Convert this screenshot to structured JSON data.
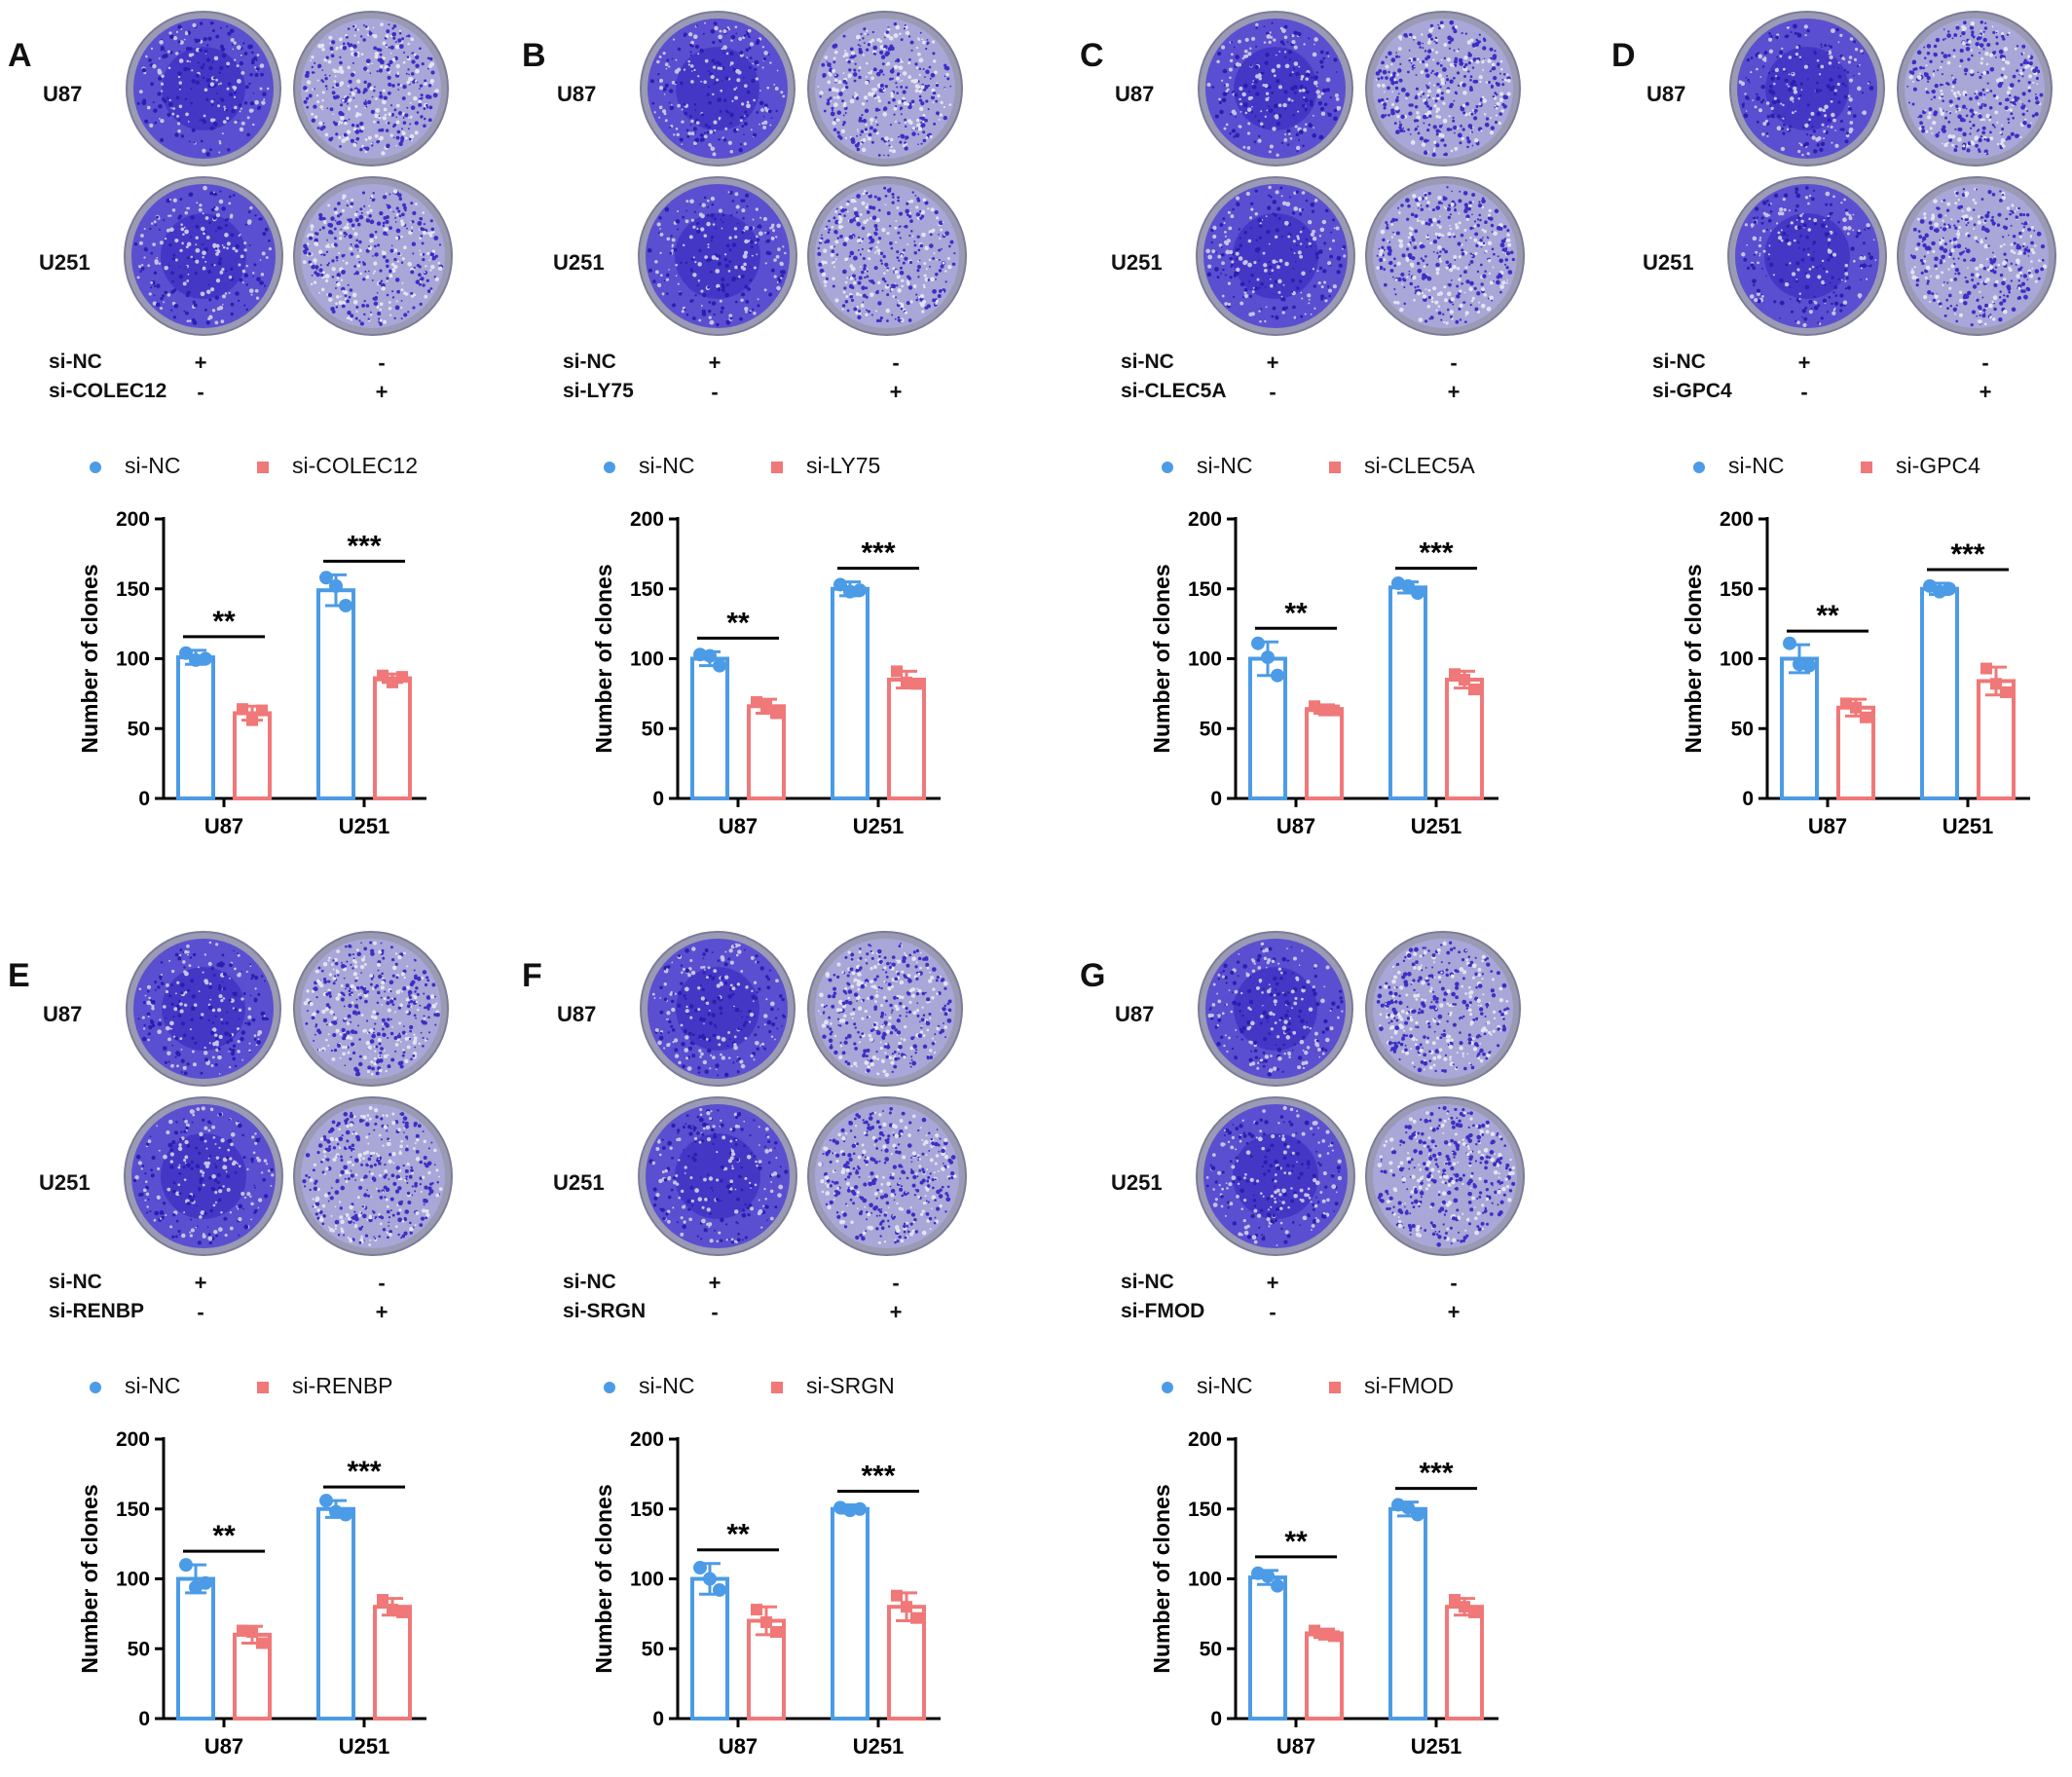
{
  "style": {
    "blue": "#4c9be6",
    "red": "#f07878",
    "axis": "#000000",
    "stain": "#3b2fc4"
  },
  "common": {
    "cell_lines": [
      "U87",
      "U251"
    ],
    "control_label": "si-NC",
    "ylabel": "Number of clones",
    "yticks": [
      "0",
      "50",
      "100",
      "150",
      "200"
    ],
    "signs": {
      "plus": "+",
      "minus": "-"
    }
  },
  "panels": [
    {
      "letter": "A",
      "gene": "si-COLEC12"
    },
    {
      "letter": "B",
      "gene": "si-LY75"
    },
    {
      "letter": "C",
      "gene": "si-CLEC5A"
    },
    {
      "letter": "D",
      "gene": "si-GPC4"
    },
    {
      "letter": "E",
      "gene": "si-RENBP"
    },
    {
      "letter": "F",
      "gene": "si-SRGN"
    },
    {
      "letter": "G",
      "gene": "si-FMOD"
    }
  ],
  "chart_data": [
    {
      "panel": "A",
      "type": "bar",
      "categories": [
        "U87",
        "U251"
      ],
      "ylabel": "Number of clones",
      "ylim": [
        0,
        200
      ],
      "series": [
        {
          "name": "si-NC",
          "values": [
            101,
            149
          ],
          "error": [
            5,
            11
          ],
          "points": [
            [
              104,
              99,
              100
            ],
            [
              158,
              152,
              138
            ]
          ]
        },
        {
          "name": "si-COLEC12",
          "values": [
            61,
            86
          ],
          "error": [
            5,
            3
          ],
          "points": [
            [
              64,
              56,
              63
            ],
            [
              88,
              83,
              87
            ]
          ]
        }
      ],
      "significance": [
        "**",
        "***"
      ]
    },
    {
      "panel": "B",
      "type": "bar",
      "categories": [
        "U87",
        "U251"
      ],
      "ylabel": "Number of clones",
      "ylim": [
        0,
        200
      ],
      "series": [
        {
          "name": "si-NC",
          "values": [
            100,
            150
          ],
          "error": [
            5,
            5
          ],
          "points": [
            [
              103,
              102,
              95
            ],
            [
              153,
              148,
              149
            ]
          ]
        },
        {
          "name": "si-LY75",
          "values": [
            66,
            85
          ],
          "error": [
            5,
            6
          ],
          "points": [
            [
              69,
              66,
              61
            ],
            [
              91,
              83,
              82
            ]
          ]
        }
      ],
      "significance": [
        "**",
        "***"
      ]
    },
    {
      "panel": "C",
      "type": "bar",
      "categories": [
        "U87",
        "U251"
      ],
      "ylabel": "Number of clones",
      "ylim": [
        0,
        200
      ],
      "series": [
        {
          "name": "si-NC",
          "values": [
            100,
            151
          ],
          "error": [
            12,
            4
          ],
          "points": [
            [
              111,
              101,
              88
            ],
            [
              154,
              152,
              147
            ]
          ]
        },
        {
          "name": "si-CLEC5A",
          "values": [
            64,
            85
          ],
          "error": [
            3,
            6
          ],
          "points": [
            [
              66,
              63,
              63
            ],
            [
              89,
              85,
              78
            ]
          ]
        }
      ],
      "significance": [
        "**",
        "***"
      ]
    },
    {
      "panel": "D",
      "type": "bar",
      "categories": [
        "U87",
        "U251"
      ],
      "ylabel": "Number of clones",
      "ylim": [
        0,
        200
      ],
      "series": [
        {
          "name": "si-NC",
          "values": [
            100,
            150
          ],
          "error": [
            10,
            4
          ],
          "points": [
            [
              111,
              96,
              95
            ],
            [
              152,
              148,
              150
            ]
          ]
        },
        {
          "name": "si-GPC4",
          "values": [
            65,
            84
          ],
          "error": [
            6,
            10
          ],
          "points": [
            [
              68,
              65,
              58
            ],
            [
              93,
              82,
              76
            ]
          ]
        }
      ],
      "significance": [
        "**",
        "***"
      ]
    },
    {
      "panel": "E",
      "type": "bar",
      "categories": [
        "U87",
        "U251"
      ],
      "ylabel": "Number of clones",
      "ylim": [
        0,
        200
      ],
      "series": [
        {
          "name": "si-NC",
          "values": [
            100,
            150
          ],
          "error": [
            10,
            6
          ],
          "points": [
            [
              110,
              94,
              97
            ],
            [
              156,
              148,
              146
            ]
          ]
        },
        {
          "name": "si-RENBP",
          "values": [
            60,
            80
          ],
          "error": [
            6,
            6
          ],
          "points": [
            [
              63,
              62,
              54
            ],
            [
              85,
              78,
              76
            ]
          ]
        }
      ],
      "significance": [
        "**",
        "***"
      ]
    },
    {
      "panel": "F",
      "type": "bar",
      "categories": [
        "U87",
        "U251"
      ],
      "ylabel": "Number of clones",
      "ylim": [
        0,
        200
      ],
      "series": [
        {
          "name": "si-NC",
          "values": [
            100,
            150
          ],
          "error": [
            11,
            3
          ],
          "points": [
            [
              108,
              100,
              92
            ],
            [
              151,
              149,
              150
            ]
          ]
        },
        {
          "name": "si-SRGN",
          "values": [
            70,
            80
          ],
          "error": [
            10,
            10
          ],
          "points": [
            [
              78,
              69,
              62
            ],
            [
              88,
              80,
              72
            ]
          ]
        }
      ],
      "significance": [
        "**",
        "***"
      ]
    },
    {
      "panel": "G",
      "type": "bar",
      "categories": [
        "U87",
        "U251"
      ],
      "ylabel": "Number of clones",
      "ylim": [
        0,
        200
      ],
      "series": [
        {
          "name": "si-NC",
          "values": [
            101,
            150
          ],
          "error": [
            5,
            5
          ],
          "points": [
            [
              104,
              102,
              95
            ],
            [
              153,
              151,
              146
            ]
          ]
        },
        {
          "name": "si-FMOD",
          "values": [
            61,
            80
          ],
          "error": [
            3,
            6
          ],
          "points": [
            [
              63,
              60,
              59
            ],
            [
              85,
              80,
              76
            ]
          ]
        }
      ],
      "significance": [
        "**",
        "***"
      ]
    }
  ]
}
